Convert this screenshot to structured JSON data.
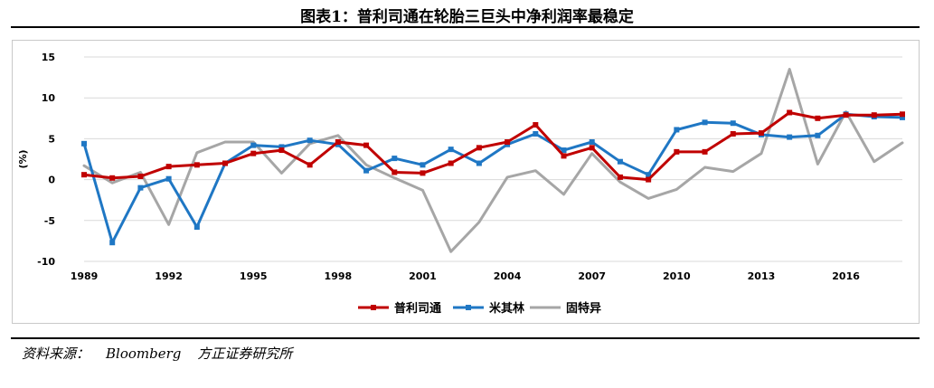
{
  "title": "图表1：普利司通在轮胎三巨头中净利润率最稳定",
  "source": {
    "label": "资料来源：",
    "items": [
      "Bloomberg",
      "方正证券研究所"
    ]
  },
  "chart_data": {
    "type": "line",
    "title": "图表1：普利司通在轮胎三巨头中净利润率最稳定",
    "xlabel": "",
    "ylabel": "(%)",
    "ylim": [
      -10,
      15
    ],
    "yticks": [
      -10,
      -5,
      0,
      5,
      10,
      15
    ],
    "xticks": [
      1989,
      1992,
      1995,
      1998,
      2001,
      2004,
      2007,
      2010,
      2013,
      2016
    ],
    "grid": true,
    "legend_position": "bottom",
    "x": [
      1989,
      1990,
      1991,
      1992,
      1993,
      1994,
      1995,
      1996,
      1997,
      1998,
      1999,
      2000,
      2001,
      2002,
      2003,
      2004,
      2005,
      2006,
      2007,
      2008,
      2009,
      2010,
      2011,
      2012,
      2013,
      2014,
      2015,
      2016,
      2017,
      2018
    ],
    "series": [
      {
        "name": "普利司通",
        "color": "#c00000",
        "marker": "square",
        "values": [
          0.6,
          0.2,
          0.4,
          1.6,
          1.8,
          2.0,
          3.2,
          3.6,
          1.8,
          4.6,
          4.2,
          0.9,
          0.8,
          2.0,
          3.9,
          4.6,
          6.7,
          2.9,
          3.9,
          0.3,
          0.0,
          3.4,
          3.4,
          5.6,
          5.7,
          8.2,
          7.5,
          7.9,
          7.9,
          8.0
        ]
      },
      {
        "name": "米其林",
        "color": "#1f77c4",
        "marker": "square",
        "values": [
          4.4,
          -7.7,
          -1.0,
          0.1,
          -5.8,
          2.0,
          4.2,
          4.0,
          4.8,
          4.3,
          1.1,
          2.6,
          1.8,
          3.7,
          2.0,
          4.3,
          5.6,
          3.6,
          4.6,
          2.2,
          0.6,
          6.1,
          7.0,
          6.9,
          5.5,
          5.2,
          5.4,
          8.0,
          7.7,
          7.6
        ]
      },
      {
        "name": "固特异",
        "color": "#a6a6a6",
        "marker": "none",
        "values": [
          1.7,
          -0.4,
          0.9,
          -5.5,
          3.3,
          4.6,
          4.6,
          0.8,
          4.4,
          5.4,
          1.8,
          0.2,
          -1.3,
          -8.8,
          -5.2,
          0.3,
          1.1,
          -1.8,
          3.2,
          -0.3,
          -2.3,
          -1.2,
          1.5,
          1.0,
          3.2,
          13.5,
          1.9,
          8.3,
          2.2,
          4.5
        ]
      }
    ]
  }
}
